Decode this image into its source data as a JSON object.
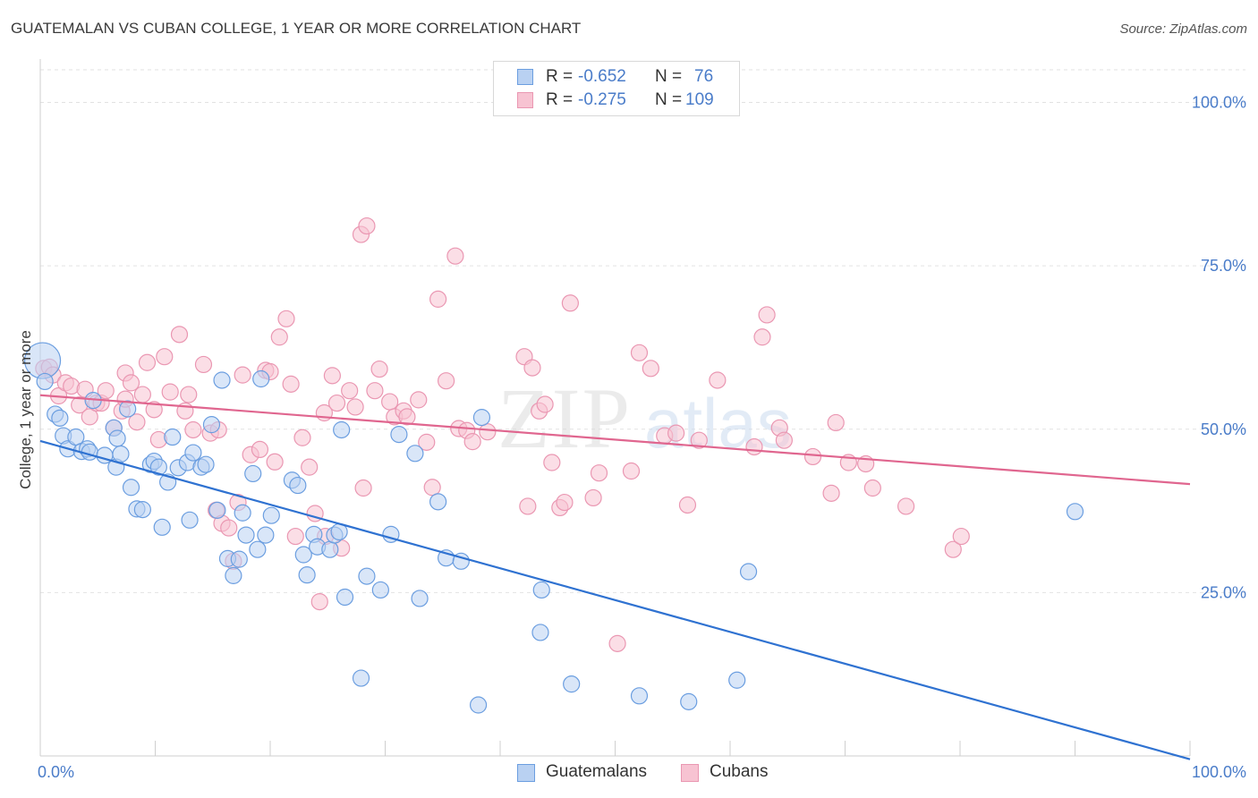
{
  "header": {
    "title": "GUATEMALAN VS CUBAN COLLEGE, 1 YEAR OR MORE CORRELATION CHART",
    "source": "Source: ZipAtlas.com"
  },
  "watermark": {
    "zip": "ZIP",
    "atlas": "atlas"
  },
  "legend_top": {
    "rows": [
      {
        "r_label": "R =",
        "r_value": "-0.652",
        "n_label": "N =",
        "n_value": "76"
      },
      {
        "r_label": "R =",
        "r_value": "-0.275",
        "n_label": "N =",
        "n_value": "109"
      }
    ]
  },
  "legend_bottom": {
    "items": [
      "Guatemalans",
      "Cubans"
    ]
  },
  "colors": {
    "blue_fill": "#b9d1f2",
    "blue_stroke": "#6b9ee0",
    "blue_line": "#2f72d1",
    "pink_fill": "#f7c3d2",
    "pink_stroke": "#ea97b2",
    "pink_line": "#e0668f",
    "tick_text": "#4a7cc9",
    "grid": "#e2e2e2"
  },
  "chart_data": {
    "type": "scatter",
    "title": "GUATEMALAN VS CUBAN COLLEGE, 1 YEAR OR MORE CORRELATION CHART",
    "xlabel": "",
    "ylabel": "College, 1 year or more",
    "xlim": [
      0,
      100
    ],
    "ylim": [
      0,
      105
    ],
    "x_tick_labels": [
      "0.0%",
      "100.0%"
    ],
    "y_ticks": [
      25,
      50,
      75,
      100
    ],
    "y_tick_labels": [
      "25.0%",
      "50.0%",
      "75.0%",
      "100.0%"
    ],
    "grid": true,
    "legend_placement": "bottom-center",
    "series": [
      {
        "name": "Guatemalans",
        "color": "#6b9ee0",
        "R": -0.652,
        "N": 76,
        "trend": {
          "x": [
            0,
            100
          ],
          "y": [
            48.2,
            -0.5
          ]
        },
        "points": [
          [
            0.2,
            60.5
          ],
          [
            0.4,
            57.3
          ],
          [
            1.3,
            52.3
          ],
          [
            1.7,
            51.7
          ],
          [
            2.0,
            49.0
          ],
          [
            2.4,
            47.0
          ],
          [
            3.1,
            48.8
          ],
          [
            3.6,
            46.6
          ],
          [
            4.1,
            47.0
          ],
          [
            4.3,
            46.5
          ],
          [
            4.6,
            54.4
          ],
          [
            5.6,
            46.0
          ],
          [
            6.4,
            50.2
          ],
          [
            7.6,
            53.1
          ],
          [
            6.7,
            48.6
          ],
          [
            6.6,
            44.2
          ],
          [
            7.0,
            46.2
          ],
          [
            7.9,
            41.1
          ],
          [
            8.4,
            37.8
          ],
          [
            8.9,
            37.7
          ],
          [
            9.6,
            44.6
          ],
          [
            9.9,
            45.1
          ],
          [
            10.3,
            44.2
          ],
          [
            10.6,
            35.0
          ],
          [
            11.1,
            41.9
          ],
          [
            11.5,
            48.8
          ],
          [
            12.0,
            44.1
          ],
          [
            12.8,
            44.9
          ],
          [
            13.0,
            36.1
          ],
          [
            13.3,
            46.4
          ],
          [
            14.0,
            44.2
          ],
          [
            14.4,
            44.6
          ],
          [
            14.9,
            50.7
          ],
          [
            15.4,
            37.6
          ],
          [
            15.8,
            57.5
          ],
          [
            16.3,
            30.2
          ],
          [
            16.8,
            27.6
          ],
          [
            17.3,
            30.1
          ],
          [
            17.6,
            37.2
          ],
          [
            17.9,
            33.8
          ],
          [
            18.5,
            43.2
          ],
          [
            18.9,
            31.6
          ],
          [
            19.2,
            57.7
          ],
          [
            19.6,
            33.8
          ],
          [
            20.1,
            36.8
          ],
          [
            21.9,
            42.2
          ],
          [
            22.4,
            41.4
          ],
          [
            22.9,
            30.8
          ],
          [
            23.2,
            27.7
          ],
          [
            23.8,
            33.9
          ],
          [
            24.1,
            32.0
          ],
          [
            25.2,
            31.6
          ],
          [
            25.6,
            33.8
          ],
          [
            26.0,
            34.3
          ],
          [
            26.2,
            49.9
          ],
          [
            26.5,
            24.3
          ],
          [
            27.9,
            11.9
          ],
          [
            28.4,
            27.5
          ],
          [
            29.6,
            25.4
          ],
          [
            30.5,
            33.9
          ],
          [
            31.2,
            49.2
          ],
          [
            32.6,
            46.3
          ],
          [
            33.0,
            24.1
          ],
          [
            34.6,
            38.9
          ],
          [
            35.3,
            30.3
          ],
          [
            36.6,
            29.8
          ],
          [
            38.1,
            7.8
          ],
          [
            38.4,
            51.8
          ],
          [
            43.6,
            25.4
          ],
          [
            43.5,
            18.9
          ],
          [
            46.2,
            11.0
          ],
          [
            52.1,
            9.2
          ],
          [
            56.4,
            8.3
          ],
          [
            60.6,
            11.6
          ],
          [
            61.6,
            28.2
          ],
          [
            90.0,
            37.4
          ]
        ]
      },
      {
        "name": "Cubans",
        "color": "#ea97b2",
        "R": -0.275,
        "N": 109,
        "trend": {
          "x": [
            0,
            100
          ],
          "y": [
            55.2,
            41.6
          ]
        },
        "points": [
          [
            0.3,
            59.3
          ],
          [
            0.8,
            59.5
          ],
          [
            1.1,
            58.3
          ],
          [
            1.6,
            55.1
          ],
          [
            2.2,
            57.1
          ],
          [
            2.7,
            56.6
          ],
          [
            3.4,
            53.7
          ],
          [
            3.9,
            56.1
          ],
          [
            4.3,
            51.9
          ],
          [
            4.9,
            54.0
          ],
          [
            5.3,
            54.0
          ],
          [
            5.7,
            55.9
          ],
          [
            6.4,
            50.2
          ],
          [
            7.1,
            52.8
          ],
          [
            7.4,
            54.6
          ],
          [
            7.4,
            58.6
          ],
          [
            7.9,
            57.1
          ],
          [
            8.4,
            51.1
          ],
          [
            8.9,
            55.3
          ],
          [
            9.3,
            60.2
          ],
          [
            9.9,
            53.0
          ],
          [
            10.3,
            48.4
          ],
          [
            10.8,
            61.1
          ],
          [
            11.3,
            55.7
          ],
          [
            12.1,
            64.5
          ],
          [
            12.6,
            52.8
          ],
          [
            12.9,
            55.3
          ],
          [
            13.3,
            49.9
          ],
          [
            14.2,
            59.9
          ],
          [
            14.8,
            49.4
          ],
          [
            15.3,
            37.6
          ],
          [
            15.5,
            49.9
          ],
          [
            15.8,
            35.6
          ],
          [
            16.4,
            34.9
          ],
          [
            16.8,
            29.8
          ],
          [
            17.2,
            38.8
          ],
          [
            17.6,
            58.3
          ],
          [
            18.3,
            46.1
          ],
          [
            19.1,
            46.9
          ],
          [
            19.6,
            59.0
          ],
          [
            20.0,
            58.8
          ],
          [
            20.4,
            45.0
          ],
          [
            20.8,
            64.1
          ],
          [
            21.4,
            66.9
          ],
          [
            21.8,
            56.9
          ],
          [
            22.2,
            33.6
          ],
          [
            22.8,
            48.7
          ],
          [
            23.4,
            44.2
          ],
          [
            23.9,
            37.1
          ],
          [
            24.3,
            23.6
          ],
          [
            24.7,
            52.5
          ],
          [
            24.8,
            33.6
          ],
          [
            25.4,
            58.2
          ],
          [
            25.8,
            54.0
          ],
          [
            26.2,
            31.8
          ],
          [
            26.9,
            55.9
          ],
          [
            27.4,
            53.4
          ],
          [
            27.9,
            79.8
          ],
          [
            28.4,
            81.1
          ],
          [
            28.1,
            41.0
          ],
          [
            29.1,
            55.9
          ],
          [
            29.5,
            59.2
          ],
          [
            30.4,
            54.2
          ],
          [
            30.8,
            51.9
          ],
          [
            31.6,
            52.8
          ],
          [
            31.9,
            51.9
          ],
          [
            32.9,
            54.5
          ],
          [
            33.6,
            48.0
          ],
          [
            34.1,
            41.1
          ],
          [
            34.6,
            69.9
          ],
          [
            35.3,
            57.4
          ],
          [
            36.1,
            76.5
          ],
          [
            36.4,
            50.1
          ],
          [
            37.1,
            49.8
          ],
          [
            37.6,
            48.1
          ],
          [
            38.9,
            49.6
          ],
          [
            42.1,
            61.1
          ],
          [
            42.4,
            38.2
          ],
          [
            42.8,
            59.4
          ],
          [
            43.4,
            52.8
          ],
          [
            43.9,
            53.8
          ],
          [
            44.5,
            44.9
          ],
          [
            45.2,
            38.0
          ],
          [
            45.6,
            38.8
          ],
          [
            46.1,
            69.3
          ],
          [
            48.1,
            39.5
          ],
          [
            48.6,
            43.3
          ],
          [
            50.2,
            17.2
          ],
          [
            51.4,
            43.6
          ],
          [
            52.1,
            61.7
          ],
          [
            53.1,
            59.3
          ],
          [
            54.3,
            49.0
          ],
          [
            55.3,
            49.4
          ],
          [
            56.3,
            38.4
          ],
          [
            57.3,
            48.3
          ],
          [
            58.9,
            57.5
          ],
          [
            62.1,
            47.3
          ],
          [
            62.8,
            64.1
          ],
          [
            63.2,
            67.5
          ],
          [
            64.3,
            50.2
          ],
          [
            64.7,
            48.3
          ],
          [
            67.2,
            45.8
          ],
          [
            68.8,
            40.2
          ],
          [
            69.2,
            51.0
          ],
          [
            70.3,
            44.9
          ],
          [
            71.8,
            44.7
          ],
          [
            72.4,
            41.0
          ],
          [
            75.3,
            38.2
          ],
          [
            79.4,
            31.6
          ],
          [
            80.1,
            33.6
          ]
        ]
      }
    ]
  }
}
